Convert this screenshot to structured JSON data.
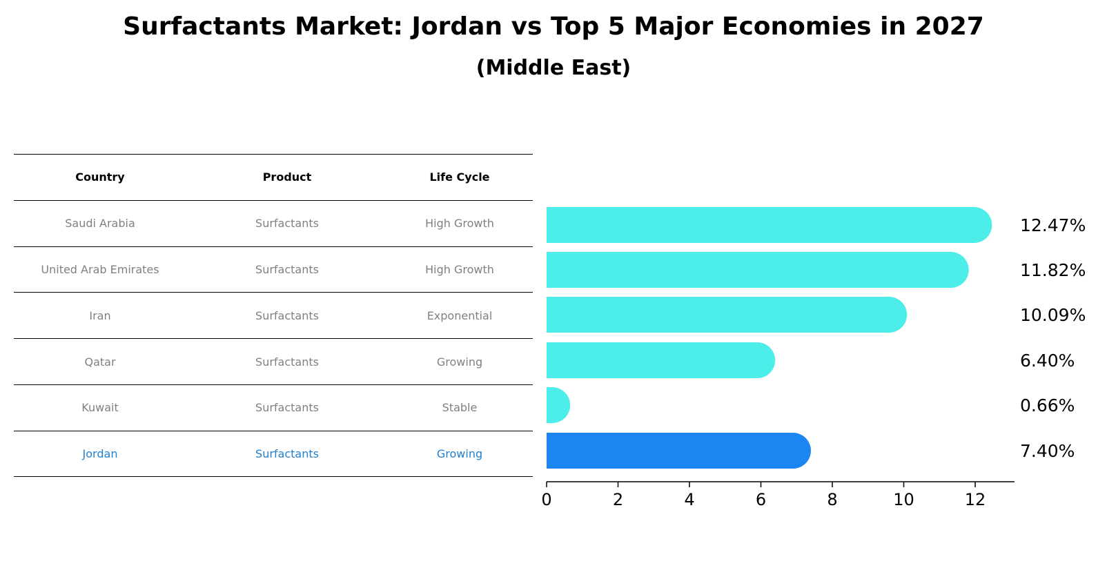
{
  "title": "Surfactants Market: Jordan vs Top 5 Major Economies in 2027",
  "subtitle": "(Middle East)",
  "table": {
    "headers": [
      "Country",
      "Product",
      "Life Cycle"
    ],
    "rows": [
      [
        "Saudi Arabia",
        "Surfactants",
        "High Growth"
      ],
      [
        "United Arab Emirates",
        "Surfactants",
        "High Growth"
      ],
      [
        "Iran",
        "Surfactants",
        "Exponential"
      ],
      [
        "Qatar",
        "Surfactants",
        "Growing"
      ],
      [
        "Kuwait",
        "Surfactants",
        "Stable"
      ],
      [
        "Jordan",
        "Surfactants",
        "Growing"
      ]
    ],
    "highlight_row": 5
  },
  "colors": {
    "bar": "#4dede9",
    "highlight_bar": "#1b85f2",
    "highlight_text": "#1f7fd0",
    "muted_text": "#808080"
  },
  "chart_data": {
    "type": "bar",
    "orientation": "horizontal",
    "categories": [
      "Saudi Arabia",
      "United Arab Emirates",
      "Iran",
      "Qatar",
      "Kuwait",
      "Jordan"
    ],
    "values": [
      12.47,
      11.82,
      10.09,
      6.4,
      0.66,
      7.4
    ],
    "value_labels": [
      "12.47%",
      "11.82%",
      "10.09%",
      "6.40%",
      "0.66%",
      "7.40%"
    ],
    "highlight_index": 5,
    "xlim": [
      0,
      13.1
    ],
    "xticks": [
      0,
      2,
      4,
      6,
      8,
      10,
      12
    ],
    "grid": false
  }
}
